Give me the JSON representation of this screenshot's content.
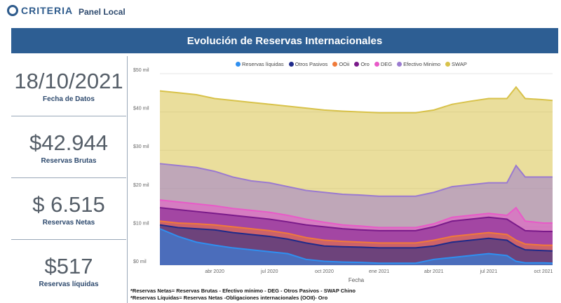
{
  "header": {
    "logo_text": "CRITERIA",
    "panel_title": "Panel Local"
  },
  "banner": {
    "title": "Evolución de Reservas Internacionales"
  },
  "kpis": [
    {
      "value": "18/10/2021",
      "label": "Fecha de Datos"
    },
    {
      "value": "$42.944",
      "label": "Reservas Brutas"
    },
    {
      "value": "$ 6.515",
      "label": "Reservas Netas"
    },
    {
      "value": "$517",
      "label": "Reservas líquidas"
    }
  ],
  "notes": [
    "*Reservas Netas= Reservas Brutas - Efectivo mínimo - DEG - Otros Pasivos - SWAP Chino",
    "*Reservas Líquidas= Reservas Netas -Obligaciones internacionales (OOII)- Oro"
  ],
  "chart_data": {
    "type": "area",
    "title": "Evolución de Reservas Internacionales",
    "xlabel": "Fecha",
    "ylabel": "",
    "ylim": [
      0,
      50
    ],
    "yticks": [
      "$0 mil",
      "$10 mil",
      "$20 mil",
      "$30 mil",
      "$40 mil",
      "$50 mil"
    ],
    "ytick_values": [
      0,
      10,
      20,
      30,
      40,
      50
    ],
    "xticks": [
      "abr 2020",
      "jul 2020",
      "oct 2020",
      "ene 2021",
      "abr 2021",
      "jul 2021",
      "oct 2021"
    ],
    "xtick_pos": [
      3,
      6,
      9,
      12,
      15,
      18,
      21
    ],
    "x": [
      0,
      1,
      2,
      3,
      4,
      5,
      6,
      7,
      8,
      9,
      10,
      11,
      12,
      13,
      14,
      15,
      16,
      17,
      18,
      19,
      19.5,
      20,
      21,
      21.5
    ],
    "legend_position": "top",
    "series": [
      {
        "name": "Reservas líquidas",
        "color": "#2f8ff0",
        "values": [
          9.5,
          7.5,
          6,
          5.2,
          4.5,
          4,
          3.5,
          3,
          1.5,
          1,
          0.8,
          0.7,
          0.5,
          0.5,
          0.5,
          1.5,
          2,
          2.5,
          3,
          2.5,
          1,
          0.6,
          0.6,
          0.5
        ]
      },
      {
        "name": "Otros Pasivos",
        "color": "#1f2a8a",
        "values": [
          10.5,
          9.8,
          9.5,
          9.2,
          8.5,
          8,
          7.5,
          6.8,
          5.8,
          5,
          4.8,
          4.7,
          4.5,
          4.5,
          4.5,
          5,
          6,
          6.5,
          7,
          6.5,
          5,
          4,
          3.8,
          3.7
        ]
      },
      {
        "name": "OOii",
        "color": "#f07a3a",
        "values": [
          11.5,
          11,
          10.8,
          10.5,
          10,
          9.5,
          9,
          8.3,
          7.2,
          6.5,
          6.2,
          6,
          5.8,
          5.8,
          5.8,
          6.5,
          7.5,
          8,
          8.5,
          8,
          6.5,
          5.5,
          5.2,
          5.2
        ]
      },
      {
        "name": "Oro",
        "color": "#7a1a8a",
        "values": [
          15,
          14.5,
          14,
          13.5,
          13,
          12.5,
          12,
          11.3,
          10.5,
          10,
          9.5,
          9.2,
          9,
          9,
          9,
          10,
          11.5,
          12,
          12.5,
          12,
          10.5,
          9,
          8.8,
          8.8
        ]
      },
      {
        "name": "DEG",
        "color": "#e85ac8",
        "values": [
          17,
          16.5,
          16,
          15.5,
          14.8,
          14.3,
          13.8,
          13,
          12,
          11.2,
          10.5,
          10.2,
          9.8,
          9.8,
          9.8,
          10.8,
          12.5,
          13,
          13.5,
          13,
          15,
          11.5,
          11,
          11
        ]
      },
      {
        "name": "Efectivo Minimo",
        "color": "#9a7ad0",
        "values": [
          26.5,
          26,
          25.5,
          24.5,
          23,
          22,
          21.5,
          20.5,
          19.5,
          19,
          18.5,
          18.3,
          18,
          18,
          18,
          19,
          20.5,
          21,
          21.5,
          21.5,
          26,
          23,
          23,
          23
        ]
      },
      {
        "name": "SWAP",
        "color": "#d8c24a",
        "values": [
          45.5,
          45,
          44.5,
          43.5,
          43,
          42.5,
          42,
          41.5,
          41,
          40.5,
          40.2,
          40,
          39.8,
          39.8,
          39.8,
          40.5,
          42,
          42.8,
          43.5,
          43.5,
          46.5,
          43.5,
          43.2,
          43
        ]
      }
    ]
  }
}
